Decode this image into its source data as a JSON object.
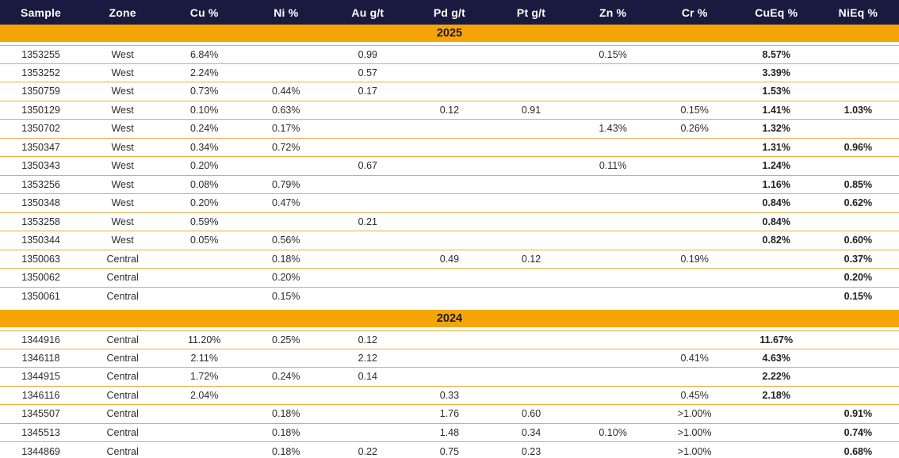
{
  "table": {
    "columns": [
      "Sample",
      "Zone",
      "Cu %",
      "Ni %",
      "Au g/t",
      "Pd g/t",
      "Pt g/t",
      "Zn %",
      "Cr %",
      "CuEq %",
      "NiEq %"
    ],
    "bold_column_indexes": [
      9,
      10
    ],
    "sections": [
      {
        "year": "2025",
        "rows": [
          [
            "1353255",
            "West",
            "6.84%",
            "",
            "0.99",
            "",
            "",
            "0.15%",
            "",
            "8.57%",
            ""
          ],
          [
            "1353252",
            "West",
            "2.24%",
            "",
            "0.57",
            "",
            "",
            "",
            "",
            "3.39%",
            ""
          ],
          [
            "1350759",
            "West",
            "0.73%",
            "0.44%",
            "0.17",
            "",
            "",
            "",
            "",
            "1.53%",
            ""
          ],
          [
            "1350129",
            "West",
            "0.10%",
            "0.63%",
            "",
            "0.12",
            "0.91",
            "",
            "0.15%",
            "1.41%",
            "1.03%"
          ],
          [
            "1350702",
            "West",
            "0.24%",
            "0.17%",
            "",
            "",
            "",
            "1.43%",
            "0.26%",
            "1.32%",
            ""
          ],
          [
            "1350347",
            "West",
            "0.34%",
            "0.72%",
            "",
            "",
            "",
            "",
            "",
            "1.31%",
            "0.96%"
          ],
          [
            "1350343",
            "West",
            "0.20%",
            "",
            "0.67",
            "",
            "",
            "0.11%",
            "",
            "1.24%",
            ""
          ],
          [
            "1353256",
            "West",
            "0.08%",
            "0.79%",
            "",
            "",
            "",
            "",
            "",
            "1.16%",
            "0.85%"
          ],
          [
            "1350348",
            "West",
            "0.20%",
            "0.47%",
            "",
            "",
            "",
            "",
            "",
            "0.84%",
            "0.62%"
          ],
          [
            "1353258",
            "West",
            "0.59%",
            "",
            "0.21",
            "",
            "",
            "",
            "",
            "0.84%",
            ""
          ],
          [
            "1350344",
            "West",
            "0.05%",
            "0.56%",
            "",
            "",
            "",
            "",
            "",
            "0.82%",
            "0.60%"
          ],
          [
            "1350063",
            "Central",
            "",
            "0.18%",
            "",
            "0.49",
            "0.12",
            "",
            "0.19%",
            "",
            "0.37%"
          ],
          [
            "1350062",
            "Central",
            "",
            "0.20%",
            "",
            "",
            "",
            "",
            "",
            "",
            "0.20%"
          ],
          [
            "1350061",
            "Central",
            "",
            "0.15%",
            "",
            "",
            "",
            "",
            "",
            "",
            "0.15%"
          ]
        ]
      },
      {
        "year": "2024",
        "rows": [
          [
            "1344916",
            "Central",
            "11.20%",
            "0.25%",
            "0.12",
            "",
            "",
            "",
            "",
            "11.67%",
            ""
          ],
          [
            "1346118",
            "Central",
            "2.11%",
            "",
            "2.12",
            "",
            "",
            "",
            "0.41%",
            "4.63%",
            ""
          ],
          [
            "1344915",
            "Central",
            "1.72%",
            "0.24%",
            "0.14",
            "",
            "",
            "",
            "",
            "2.22%",
            ""
          ],
          [
            "1346116",
            "Central",
            "2.04%",
            "",
            "",
            "0.33",
            "",
            "",
            "0.45%",
            "2.18%",
            ""
          ],
          [
            "1345507",
            "Central",
            "",
            "0.18%",
            "",
            "1.76",
            "0.60",
            "",
            ">1.00%",
            "",
            "0.91%"
          ],
          [
            "1345513",
            "Central",
            "",
            "0.18%",
            "",
            "1.48",
            "0.34",
            "0.10%",
            ">1.00%",
            "",
            "0.74%"
          ],
          [
            "1344869",
            "Central",
            "",
            "0.18%",
            "0.22",
            "0.75",
            "0.23",
            "",
            ">1.00%",
            "",
            "0.68%"
          ]
        ]
      }
    ]
  },
  "colors": {
    "header_bg": "#1A1A40",
    "header_text": "#FFFFFF",
    "banner_bg": "#F5A506",
    "banner_text": "#1A1A2E",
    "row_divider": "#E9AC41",
    "data_text": "#2B2B2B",
    "row_bg": "#FFFFFF"
  }
}
